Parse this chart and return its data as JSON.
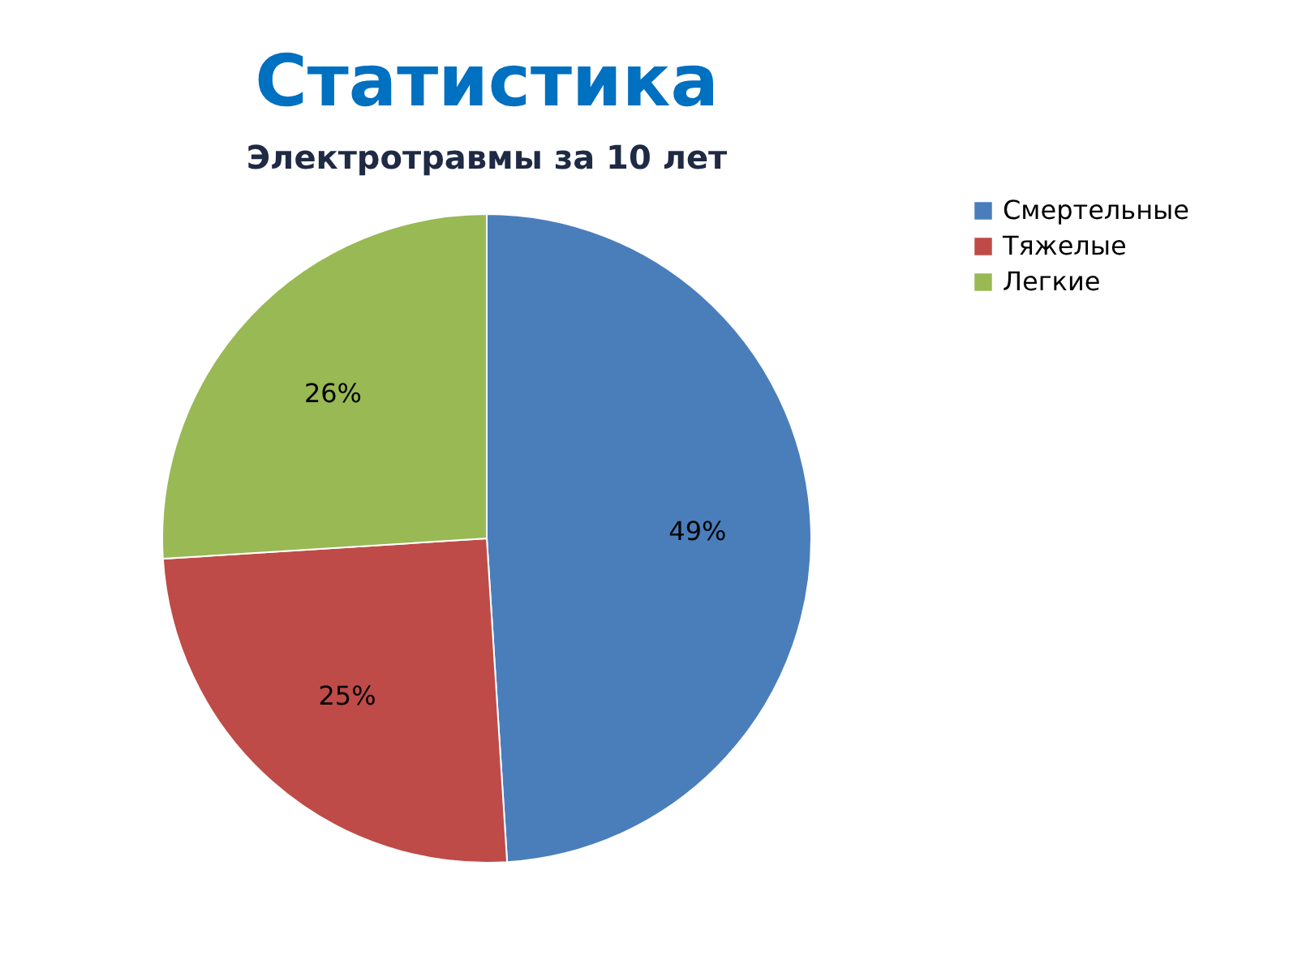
{
  "chart_data": {
    "type": "pie",
    "title": "Статистика",
    "subtitle": "Электротравмы за 10 лет",
    "categories": [
      "Смертельные",
      "Тяжелые",
      "Легкие"
    ],
    "values": [
      49,
      25,
      26
    ],
    "colors": [
      "#4a7ebb",
      "#be4b48",
      "#98b954"
    ],
    "value_labels": [
      "49%",
      "25%",
      "26%"
    ],
    "legend": "right"
  }
}
